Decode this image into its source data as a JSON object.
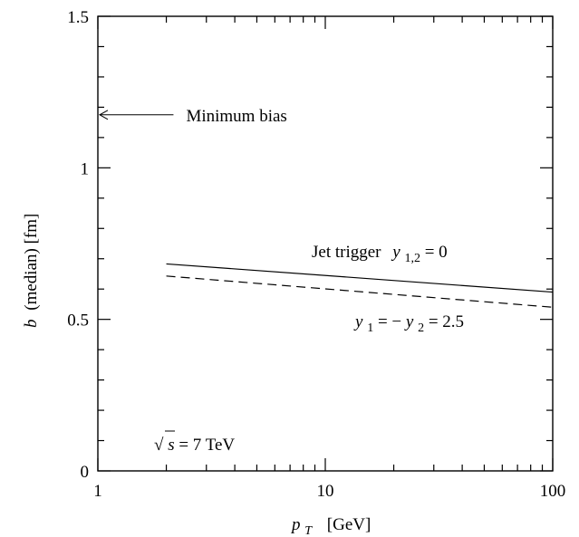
{
  "chart_data": {
    "type": "line",
    "xlabel": "p",
    "xlabel_sub": "T",
    "xlabel_unit": "[GeV]",
    "ylabel_var": "b",
    "ylabel_rest": "(median)   [fm]",
    "x_scale": "log",
    "xlim": [
      1,
      100
    ],
    "ylim": [
      0,
      1.5
    ],
    "x_ticks": [
      1,
      10,
      100
    ],
    "x_tick_labels": [
      "1",
      "10",
      "100"
    ],
    "y_ticks": [
      0,
      0.5,
      1,
      1.5
    ],
    "y_tick_labels": [
      "0",
      "0.5",
      "1",
      "1.5"
    ],
    "grid": false,
    "series": [
      {
        "key": "s1",
        "name": "Jet trigger y1,2 = 0",
        "dash": "solid",
        "x": [
          2,
          100
        ],
        "y": [
          0.683,
          0.59
        ]
      },
      {
        "key": "s2",
        "name": "y1 = −y2 = 2.5",
        "dash": "dashed",
        "x": [
          2,
          100
        ],
        "y": [
          0.643,
          0.54
        ]
      }
    ],
    "annotations": {
      "minimum_bias": {
        "text": "Minimum bias",
        "y": 1.175,
        "x_tail": 2.15
      },
      "series1_label": {
        "prefix": "Jet  trigger",
        "var": "y",
        "sub": "1,2",
        "rest": " = 0"
      },
      "series2_label": {
        "var1": "y",
        "sub1": "1",
        "mid": " = −",
        "var2": "y",
        "sub2": "2",
        "rest": " = 2.5"
      },
      "energy": {
        "sqrt": "√",
        "var": "s",
        "rest": " = 7 TeV"
      }
    }
  }
}
